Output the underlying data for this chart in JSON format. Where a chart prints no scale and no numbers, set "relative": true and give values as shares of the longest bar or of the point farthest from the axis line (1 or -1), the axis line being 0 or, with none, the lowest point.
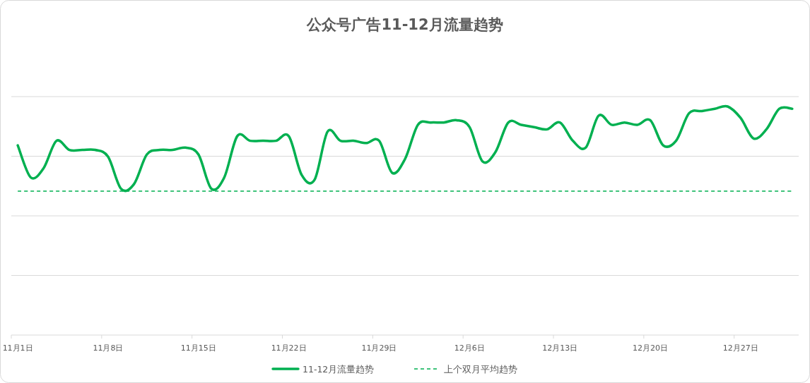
{
  "chart_data": {
    "type": "line",
    "title": "公众号广告11-12月流量趋势",
    "relative": true,
    "grid": "y",
    "legend": "bottom",
    "marker": "none",
    "categories": [
      "11月1日",
      null,
      null,
      null,
      null,
      null,
      null,
      "11月8日",
      null,
      null,
      null,
      null,
      null,
      null,
      "11月15日",
      null,
      null,
      null,
      null,
      null,
      null,
      "11月22日",
      null,
      null,
      null,
      null,
      null,
      null,
      "11月29日",
      null,
      null,
      null,
      null,
      null,
      null,
      "12月6日",
      null,
      null,
      null,
      null,
      null,
      null,
      "12月13日",
      null,
      null,
      null,
      null,
      null,
      null,
      "12月20日",
      null,
      null,
      null,
      null,
      null,
      null,
      "12月27日",
      null,
      null,
      null,
      null
    ],
    "series": [
      {
        "name": "11-12月流量趋势",
        "color": "#00b050",
        "line_style": "solid",
        "values": [
          0.83,
          0.69,
          0.73,
          0.85,
          0.81,
          0.81,
          0.81,
          0.78,
          0.64,
          0.66,
          0.79,
          0.81,
          0.81,
          0.82,
          0.79,
          0.64,
          0.69,
          0.87,
          0.85,
          0.85,
          0.85,
          0.87,
          0.7,
          0.68,
          0.89,
          0.85,
          0.85,
          0.84,
          0.85,
          0.71,
          0.77,
          0.92,
          0.93,
          0.93,
          0.94,
          0.91,
          0.76,
          0.8,
          0.93,
          0.92,
          0.91,
          0.9,
          0.93,
          0.85,
          0.82,
          0.96,
          0.92,
          0.93,
          0.92,
          0.94,
          0.83,
          0.85,
          0.97,
          0.98,
          0.99,
          1,
          0.95,
          0.86,
          0.9,
          0.99,
          0.99
        ]
      },
      {
        "name": "上个双月平均趋势",
        "color": "#00b050",
        "line_style": "dashed",
        "values": [
          0.63,
          0.63,
          0.63,
          0.63,
          0.63,
          0.63,
          0.63,
          0.63,
          0.63,
          0.63,
          0.63,
          0.63,
          0.63,
          0.63,
          0.63,
          0.63,
          0.63,
          0.63,
          0.63,
          0.63,
          0.63,
          0.63,
          0.63,
          0.63,
          0.63,
          0.63,
          0.63,
          0.63,
          0.63,
          0.63,
          0.63,
          0.63,
          0.63,
          0.63,
          0.63,
          0.63,
          0.63,
          0.63,
          0.63,
          0.63,
          0.63,
          0.63,
          0.63,
          0.63,
          0.63,
          0.63,
          0.63,
          0.63,
          0.63,
          0.63,
          0.63,
          0.63,
          0.63,
          0.63,
          0.63,
          0.63,
          0.63,
          0.63,
          0.63,
          0.63,
          0.63
        ]
      }
    ]
  }
}
